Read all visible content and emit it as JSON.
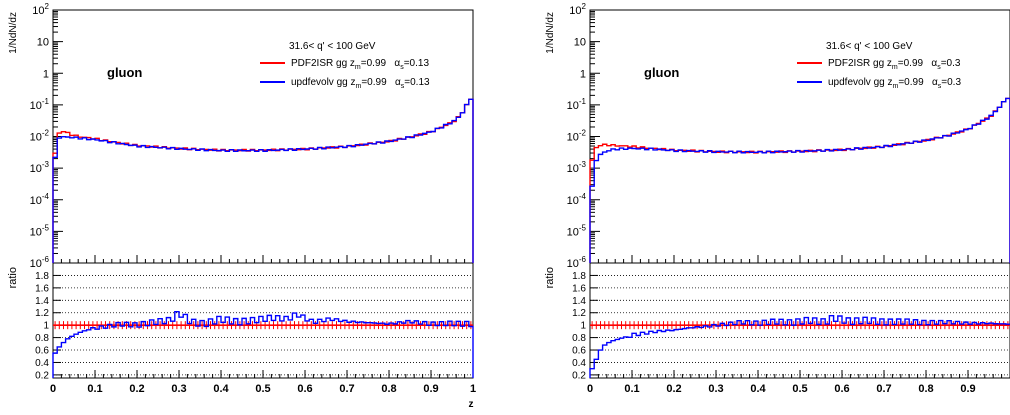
{
  "colors": {
    "pdf2isr": "#ff0000",
    "updfevolv": "#0000ff",
    "axis": "#000000",
    "grid": "#000000"
  },
  "chart_data": [
    {
      "type": "line",
      "panel": "left",
      "category_label": "gluon",
      "annotation": "31.6< q' < 100 GeV",
      "ylabel": "1/NdN/dz",
      "ratio_ylabel": "ratio",
      "xlabel": "z",
      "xlim": [
        0,
        1
      ],
      "ylim": [
        1e-06,
        100
      ],
      "y_scale": "log",
      "ratio_ylim": [
        0.15,
        2.0
      ],
      "ratio_ticks": [
        "0.2",
        "0.4",
        "0.6",
        "0.8",
        "1",
        "1.2",
        "1.4",
        "1.6",
        "1.8"
      ],
      "x_ticks": [
        "0",
        "0.1",
        "0.2",
        "0.3",
        "0.4",
        "0.5",
        "0.6",
        "0.7",
        "0.8",
        "0.9",
        "1"
      ],
      "y_tick_mantissa": "10",
      "y_tick_exponents": [
        "-6",
        "-5",
        "-4",
        "-3",
        "-2",
        "-1",
        "",
        "",
        ""
      ],
      "y_tick_plain": [
        "",
        "",
        "",
        "",
        "",
        "",
        "1",
        "10",
        "10"
      ],
      "y_top_label_base": "10",
      "y_top_label_exp": "2",
      "legend": [
        {
          "text": "PDF2ISR gg z",
          "sub": "m",
          "rest": "=0.99",
          "alpha": "α",
          "alpha_sub": "s",
          "alpha_val": "=0.13"
        },
        {
          "text": "updfevolv gg z",
          "sub": "m",
          "rest": "=0.99",
          "alpha": "α",
          "alpha_sub": "s",
          "alpha_val": "=0.13"
        }
      ],
      "series": [
        {
          "name": "PDF2ISR gg zm=0.99 αs=0.13",
          "x": [
            0.0,
            0.01,
            0.02,
            0.04,
            0.06,
            0.1,
            0.15,
            0.2,
            0.3,
            0.4,
            0.5,
            0.6,
            0.7,
            0.8,
            0.85,
            0.9,
            0.95,
            0.97,
            0.98,
            0.99
          ],
          "y": [
            0.0008,
            0.011,
            0.015,
            0.012,
            0.01,
            0.0085,
            0.0065,
            0.0052,
            0.0042,
            0.0037,
            0.0037,
            0.004,
            0.0048,
            0.007,
            0.0095,
            0.014,
            0.028,
            0.045,
            0.07,
            0.15
          ]
        },
        {
          "name": "updfevolv gg zm=0.99 αs=0.13",
          "x": [
            0.0,
            0.01,
            0.02,
            0.04,
            0.06,
            0.1,
            0.15,
            0.2,
            0.3,
            0.4,
            0.5,
            0.6,
            0.7,
            0.8,
            0.85,
            0.9,
            0.95,
            0.97,
            0.98,
            0.99
          ],
          "y": [
            0.0006,
            0.008,
            0.01,
            0.0095,
            0.009,
            0.008,
            0.0063,
            0.005,
            0.0041,
            0.0036,
            0.0036,
            0.004,
            0.0048,
            0.007,
            0.0095,
            0.014,
            0.028,
            0.045,
            0.07,
            0.15
          ]
        }
      ],
      "ratio_series": {
        "x": [
          0.0,
          0.005,
          0.015,
          0.025,
          0.035,
          0.05,
          0.07,
          0.1,
          0.13,
          0.16,
          0.2,
          0.24,
          0.28,
          0.3,
          0.33,
          0.36,
          0.4,
          0.44,
          0.48,
          0.52,
          0.56,
          0.58,
          0.62,
          0.66,
          0.7,
          0.75,
          0.8,
          0.85,
          0.9,
          0.95,
          0.98
        ],
        "y": [
          0.15,
          0.55,
          0.65,
          0.72,
          0.78,
          0.84,
          0.9,
          0.95,
          0.98,
          1.02,
          1.0,
          1.05,
          1.08,
          1.2,
          1.05,
          1.02,
          1.1,
          1.05,
          1.08,
          1.12,
          1.1,
          1.18,
          1.05,
          1.1,
          1.06,
          1.04,
          1.02,
          1.06,
          1.02,
          1.03,
          1.02
        ]
      },
      "reference_line": 1.0
    },
    {
      "type": "line",
      "panel": "right",
      "category_label": "gluon",
      "annotation": "31.6< q' < 100 GeV",
      "ylabel": "1/NdN/dz",
      "ratio_ylabel": "ratio",
      "xlabel": "",
      "xlim": [
        0,
        1
      ],
      "ylim": [
        1e-06,
        100
      ],
      "y_scale": "log",
      "ratio_ylim": [
        0.15,
        2.0
      ],
      "ratio_ticks": [
        "0.2",
        "0.4",
        "0.6",
        "0.8",
        "1",
        "1.2",
        "1.4",
        "1.6",
        "1.8"
      ],
      "x_ticks": [
        "0",
        "0.1",
        "0.2",
        "0.3",
        "0.4",
        "0.5",
        "0.6",
        "0.7",
        "0.8",
        "0.9",
        ""
      ],
      "y_tick_mantissa": "10",
      "y_tick_exponents": [
        "-6",
        "-5",
        "-4",
        "-3",
        "-2",
        "-1",
        "",
        "",
        ""
      ],
      "y_tick_plain": [
        "",
        "",
        "",
        "",
        "",
        "",
        "1",
        "10",
        "10"
      ],
      "y_top_label_base": "10",
      "y_top_label_exp": "2",
      "legend": [
        {
          "text": "PDF2ISR gg z",
          "sub": "m",
          "rest": "=0.99",
          "alpha": "α",
          "alpha_sub": "s",
          "alpha_val": "=0.3"
        },
        {
          "text": "updfevolv gg z",
          "sub": "m",
          "rest": "=0.99",
          "alpha": "α",
          "alpha_sub": "s",
          "alpha_val": "=0.3"
        }
      ],
      "series": [
        {
          "name": "PDF2ISR gg zm=0.99 αs=0.3",
          "x": [
            0.0,
            0.01,
            0.02,
            0.04,
            0.06,
            0.1,
            0.15,
            0.2,
            0.3,
            0.4,
            0.5,
            0.6,
            0.7,
            0.8,
            0.85,
            0.9,
            0.95,
            0.97,
            0.98,
            0.99
          ],
          "y": [
            0.0008,
            0.004,
            0.005,
            0.0055,
            0.0052,
            0.0048,
            0.0042,
            0.0037,
            0.0033,
            0.0032,
            0.0034,
            0.0038,
            0.0048,
            0.0075,
            0.0105,
            0.017,
            0.04,
            0.07,
            0.1,
            0.16
          ]
        },
        {
          "name": "updfevolv gg zm=0.99 αs=0.3",
          "x": [
            0.0,
            0.01,
            0.02,
            0.04,
            0.06,
            0.1,
            0.15,
            0.2,
            0.3,
            0.4,
            0.5,
            0.6,
            0.7,
            0.8,
            0.85,
            0.9,
            0.95,
            0.97,
            0.98,
            0.99
          ],
          "y": [
            6e-05,
            0.0012,
            0.0025,
            0.0035,
            0.004,
            0.0042,
            0.004,
            0.0036,
            0.0033,
            0.0032,
            0.0034,
            0.0038,
            0.0048,
            0.0075,
            0.0105,
            0.017,
            0.04,
            0.07,
            0.1,
            0.16
          ]
        }
      ],
      "ratio_series": {
        "x": [
          0.0,
          0.005,
          0.015,
          0.025,
          0.035,
          0.05,
          0.07,
          0.1,
          0.13,
          0.16,
          0.2,
          0.24,
          0.28,
          0.3,
          0.33,
          0.36,
          0.4,
          0.44,
          0.48,
          0.52,
          0.56,
          0.58,
          0.62,
          0.66,
          0.7,
          0.75,
          0.8,
          0.85,
          0.9,
          0.95,
          0.98
        ],
        "y": [
          0.15,
          0.3,
          0.45,
          0.6,
          0.68,
          0.74,
          0.78,
          0.84,
          0.87,
          0.9,
          0.92,
          0.96,
          0.98,
          1.0,
          1.02,
          1.05,
          1.03,
          1.06,
          1.04,
          1.08,
          1.05,
          1.12,
          1.06,
          1.08,
          1.05,
          1.06,
          1.04,
          1.05,
          1.03,
          1.03,
          1.02
        ]
      },
      "reference_line": 1.0
    }
  ]
}
